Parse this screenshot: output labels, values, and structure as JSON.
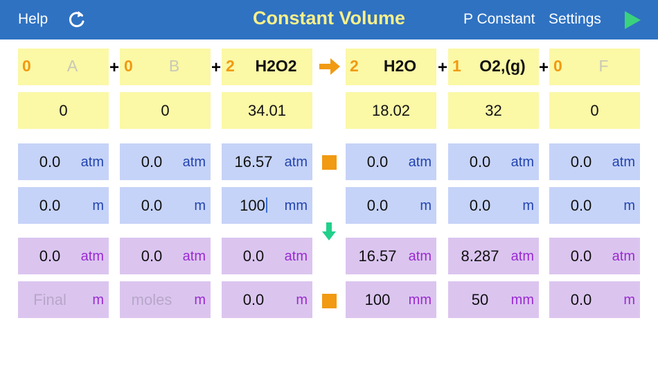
{
  "topbar": {
    "help_label": "Help",
    "title": "Constant Volume",
    "p_constant_label": "P Constant",
    "settings_label": "Settings",
    "refresh_icon": "refresh-icon",
    "play_icon": "play-icon"
  },
  "colors": {
    "topbar_bg": "#2f72c2",
    "title": "#fbf08a",
    "play": "#3ad27c",
    "coefficient": "#f19a12",
    "yellow_cell": "#fbf8a6",
    "blue_cell": "#c6d3f8",
    "purple_cell": "#dbc5ef",
    "arrow_right": "#f19a12",
    "stop_square": "#f19a12",
    "arrow_down": "#22d08a"
  },
  "reaction": {
    "plus": "+",
    "species": [
      {
        "coef": "0",
        "name": "A",
        "mw": "0",
        "initial_pressure": "0.0",
        "initial_pressure_unit": "atm",
        "initial_amount": "0.0",
        "initial_amount_unit": "m",
        "final_pressure": "0.0",
        "final_pressure_unit": "atm",
        "final_amount": "Final",
        "final_amount_unit": "m"
      },
      {
        "coef": "0",
        "name": "B",
        "mw": "0",
        "initial_pressure": "0.0",
        "initial_pressure_unit": "atm",
        "initial_amount": "0.0",
        "initial_amount_unit": "m",
        "final_pressure": "0.0",
        "final_pressure_unit": "atm",
        "final_amount": "moles",
        "final_amount_unit": "m"
      },
      {
        "coef": "2",
        "name": "H2O2",
        "mw": "34.01",
        "initial_pressure": "16.57",
        "initial_pressure_unit": "atm",
        "initial_amount": "100",
        "initial_amount_unit": "mm",
        "final_pressure": "0.0",
        "final_pressure_unit": "atm",
        "final_amount": "0.0",
        "final_amount_unit": "m"
      },
      {
        "coef": "2",
        "name": "H2O",
        "mw": "18.02",
        "initial_pressure": "0.0",
        "initial_pressure_unit": "atm",
        "initial_amount": "0.0",
        "initial_amount_unit": "m",
        "final_pressure": "16.57",
        "final_pressure_unit": "atm",
        "final_amount": "100",
        "final_amount_unit": "mm"
      },
      {
        "coef": "1",
        "name": "O2,(g)",
        "mw": "32",
        "initial_pressure": "0.0",
        "initial_pressure_unit": "atm",
        "initial_amount": "0.0",
        "initial_amount_unit": "m",
        "final_pressure": "8.287",
        "final_pressure_unit": "atm",
        "final_amount": "50",
        "final_amount_unit": "mm"
      },
      {
        "coef": "0",
        "name": "F",
        "mw": "0",
        "initial_pressure": "0.0",
        "initial_pressure_unit": "atm",
        "initial_amount": "0.0",
        "initial_amount_unit": "m",
        "final_pressure": "0.0",
        "final_pressure_unit": "atm",
        "final_amount": "0.0",
        "final_amount_unit": "m"
      }
    ]
  }
}
